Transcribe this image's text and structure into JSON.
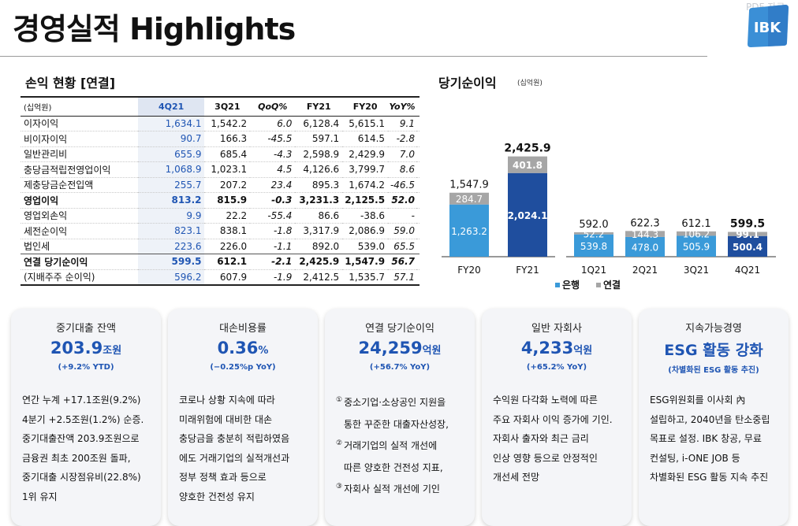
{
  "header": {
    "title": "경영실적 Highlights",
    "watermark": "PDF 자료",
    "logo_text": "IBK"
  },
  "income_table": {
    "title": "손익 현황 [연결]",
    "unit_label": "(십억원)",
    "columns": [
      "4Q21",
      "3Q21",
      "QoQ%",
      "FY21",
      "FY20",
      "YoY%"
    ],
    "rows": [
      {
        "label": "이자이익",
        "values": [
          "1,634.1",
          "1,542.2",
          "6.0",
          "6,128.4",
          "5,615.1",
          "9.1"
        ]
      },
      {
        "label": "비이자이익",
        "values": [
          "90.7",
          "166.3",
          "-45.5",
          "597.1",
          "614.5",
          "-2.8"
        ]
      },
      {
        "label": "일반관리비",
        "values": [
          "655.9",
          "685.4",
          "-4.3",
          "2,598.9",
          "2,429.9",
          "7.0"
        ]
      },
      {
        "label": "충당금적립전영업이익",
        "values": [
          "1,068.9",
          "1,023.1",
          "4.5",
          "4,126.6",
          "3,799.7",
          "8.6"
        ]
      },
      {
        "label": "제충당금순전입액",
        "values": [
          "255.7",
          "207.2",
          "23.4",
          "895.3",
          "1,674.2",
          "-46.5"
        ]
      },
      {
        "label": "영업이익",
        "values": [
          "813.2",
          "815.9",
          "-0.3",
          "3,231.3",
          "2,125.5",
          "52.0"
        ]
      },
      {
        "label": "영업외손익",
        "values": [
          "9.9",
          "22.2",
          "-55.4",
          "86.6",
          "-38.6",
          "-"
        ]
      },
      {
        "label": "세전순이익",
        "values": [
          "823.1",
          "838.1",
          "-1.8",
          "3,317.9",
          "2,086.9",
          "59.0"
        ]
      },
      {
        "label": "법인세",
        "values": [
          "223.6",
          "226.0",
          "-1.1",
          "892.0",
          "539.0",
          "65.5"
        ]
      },
      {
        "label": "연결 당기순이익",
        "values": [
          "599.5",
          "612.1",
          "-2.1",
          "2,425.9",
          "1,547.9",
          "56.7"
        ]
      },
      {
        "label": "(지배주주 순이익)",
        "values": [
          "596.2",
          "607.9",
          "-1.9",
          "2,412.5",
          "1,535.7",
          "57.1"
        ]
      }
    ]
  },
  "chart_data": {
    "type": "bar",
    "stacked": true,
    "title": "당기순이익",
    "unit": "(십억원)",
    "categories": [
      "FY20",
      "FY21",
      "1Q21",
      "2Q21",
      "3Q21",
      "4Q21"
    ],
    "series": [
      {
        "name": "은행",
        "values": [
          1263.2,
          2024.1,
          539.8,
          478.0,
          505.9,
          500.4
        ],
        "labels": [
          "1,263.2",
          "2,024.1",
          "539.8",
          "478.0",
          "505.9",
          "500.4"
        ]
      },
      {
        "name": "연결",
        "values": [
          284.7,
          401.8,
          52.2,
          144.3,
          106.2,
          99.1
        ],
        "labels": [
          "284.7",
          "401.8",
          "52.2",
          "144.3",
          "106.2",
          "99.1"
        ]
      }
    ],
    "totals": [
      "1,547.9",
      "2,425.9",
      "592.0",
      "622.3",
      "612.1",
      "599.5"
    ],
    "legend_position": "bottom",
    "colors": {
      "bank": "#3a9ad9",
      "bank_highlight": "#1f4e9e",
      "consol": "#a6a6a6"
    }
  },
  "cards": [
    {
      "title": "중기대출 잔액",
      "value": "203.9",
      "unit": "조원",
      "sub": "(+9.2% YTD)",
      "lines": [
        "연간 누계 +17.1조원(9.2%)",
        "4분기 +2.5조원(1.2%) 순증.",
        "중기대출잔액 203.9조원으로",
        "금융권 최초 200조원 돌파,",
        "중기대출 시장점유비(22.8%)",
        "1위 유지"
      ]
    },
    {
      "title": "대손비용률",
      "value": "0.36",
      "unit": "%",
      "sub": "(−0.25%p YoY)",
      "lines": [
        "코로나 상황 지속에 따라",
        "미래위험에 대비한 대손",
        "충당금을 충분히 적립하였음",
        "에도 거래기업의 실적개선과",
        "정부 정책 효과 등으로",
        "양호한 건전성 유지"
      ]
    },
    {
      "title": "연결 당기순이익",
      "value": "24,259",
      "unit": "억원",
      "sub": "(+56.7% YoY)",
      "lines": [
        {
          "n": "①",
          "t": "중소기업·소상공인 지원을"
        },
        {
          "n": "",
          "t": "통한 꾸준한 대출자산성장,"
        },
        {
          "n": "②",
          "t": "거래기업의 실적 개선에"
        },
        {
          "n": "",
          "t": "따른 양호한 건전성 지표,"
        },
        {
          "n": "③",
          "t": "자회사 실적 개선에 기인"
        }
      ]
    },
    {
      "title": "일반 자회사",
      "value": "4,233",
      "unit": "억원",
      "sub": "(+65.2% YoY)",
      "lines": [
        "수익원 다각화 노력에 따른",
        "주요 자회사 이익 증가에 기인.",
        "자회사 출자와 최근 금리",
        "인상 영향 등으로 안정적인",
        "개선세 전망"
      ]
    },
    {
      "title": "지속가능경영",
      "value": "ESG 활동 강화",
      "unit": "",
      "sub": "(차별화된 ESG 활동 추진)",
      "lines": [
        "ESG위원회를 이사회 內",
        "설립하고, 2040년을 탄소중립",
        "목표로 설정. IBK 창공, 무료",
        "컨설팅, i-ONE JOB 등",
        "차별화된 ESG 활동 지속 추진"
      ]
    }
  ]
}
